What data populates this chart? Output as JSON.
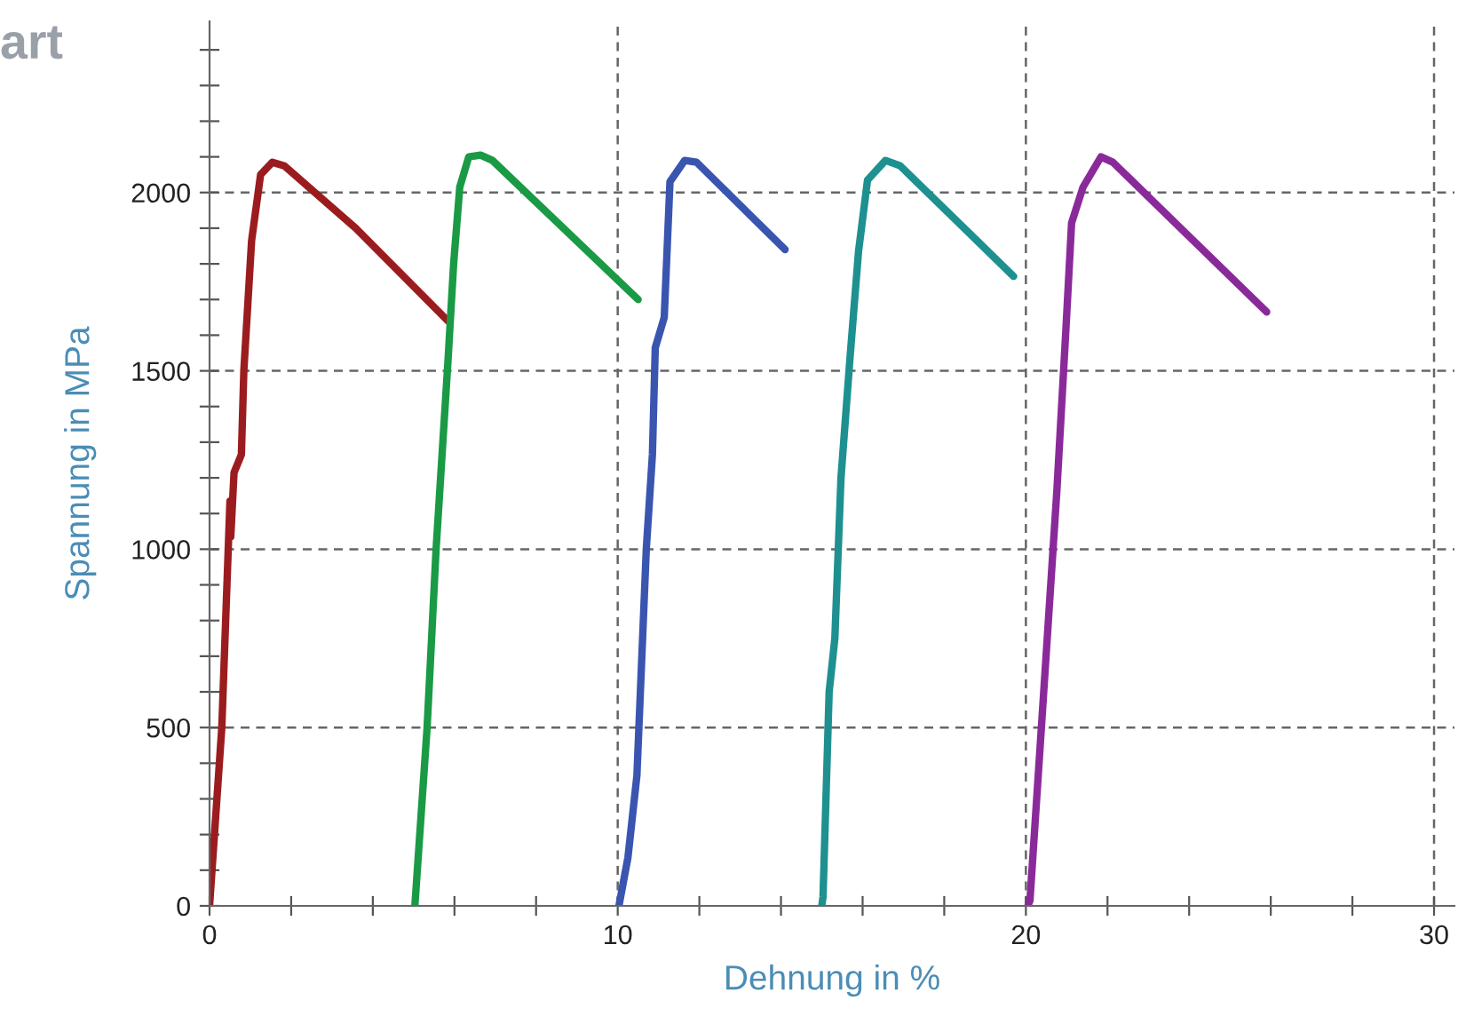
{
  "chart_data": {
    "type": "line",
    "title": "art",
    "xlabel": "Dehnung in %",
    "ylabel": "Spannung in MPa",
    "xlim": [
      0,
      30.5
    ],
    "ylim": [
      0,
      2480
    ],
    "xticks": [
      0,
      {
        "value": 2,
        "label": null
      },
      {
        "value": 4,
        "label": null
      },
      {
        "value": 6,
        "label": null
      },
      {
        "value": 8,
        "label": null
      },
      10,
      {
        "value": 12,
        "label": null
      },
      {
        "value": 14,
        "label": null
      },
      {
        "value": 16,
        "label": null
      },
      {
        "value": 18,
        "label": null
      },
      20,
      {
        "value": 22,
        "label": null
      },
      {
        "value": 24,
        "label": null
      },
      {
        "value": 26,
        "label": null
      },
      {
        "value": 28,
        "label": null
      },
      30
    ],
    "yticks": [
      0,
      {
        "value": 100,
        "label": null
      },
      {
        "value": 200,
        "label": null
      },
      {
        "value": 300,
        "label": null
      },
      {
        "value": 400,
        "label": null
      },
      500,
      {
        "value": 600,
        "label": null
      },
      {
        "value": 700,
        "label": null
      },
      {
        "value": 800,
        "label": null
      },
      {
        "value": 900,
        "label": null
      },
      1000,
      {
        "value": 1100,
        "label": null
      },
      {
        "value": 1200,
        "label": null
      },
      {
        "value": 1300,
        "label": null
      },
      {
        "value": 1400,
        "label": null
      },
      1500,
      {
        "value": 1600,
        "label": null
      },
      {
        "value": 1700,
        "label": null
      },
      {
        "value": 1800,
        "label": null
      },
      {
        "value": 1900,
        "label": null
      },
      2000,
      {
        "value": 2100,
        "label": null
      },
      {
        "value": 2200,
        "label": null
      },
      {
        "value": 2300,
        "label": null
      },
      {
        "value": 2400,
        "label": null
      }
    ],
    "grid": true,
    "marker": "none",
    "line_style": "solid",
    "series": [
      {
        "color": "#9b1c1f",
        "x": [
          0,
          0.3,
          0.5,
          0.52,
          0.6,
          0.78,
          0.84,
          1.03,
          1.25,
          1.54,
          1.83,
          3.58,
          5.84
        ],
        "values": [
          0,
          500,
          1135,
          1035,
          1215,
          1265,
          1500,
          1865,
          2050,
          2085,
          2075,
          1900,
          1640
        ]
      },
      {
        "color": "#1a9a45",
        "x": [
          5.03,
          5.33,
          5.55,
          5.84,
          5.98,
          6.13,
          6.35,
          6.64,
          6.93,
          10.5
        ],
        "values": [
          0,
          500,
          1000,
          1525,
          1800,
          2015,
          2100,
          2105,
          2090,
          1700
        ]
      },
      {
        "color": "#3a55b0",
        "x": [
          10.03,
          10.25,
          10.47,
          10.7,
          10.85,
          10.92,
          11.14,
          11.28,
          11.64,
          11.93,
          14.1
        ],
        "values": [
          0,
          135,
          365,
          1000,
          1265,
          1565,
          1650,
          2030,
          2090,
          2085,
          1840
        ]
      },
      {
        "color": "#1e9090",
        "x": [
          15.0,
          15.03,
          15.18,
          15.32,
          15.47,
          15.69,
          15.9,
          16.12,
          16.56,
          16.92,
          19.7
        ],
        "values": [
          0,
          25,
          600,
          750,
          1200,
          1535,
          1835,
          2035,
          2090,
          2075,
          1765
        ]
      },
      {
        "color": "#8a2a9a",
        "x": [
          20.05,
          20.1,
          20.4,
          20.76,
          20.98,
          21.12,
          21.4,
          21.84,
          22.13,
          25.9
        ],
        "values": [
          0,
          15,
          535,
          1165,
          1615,
          1915,
          2015,
          2100,
          2085,
          1665
        ]
      }
    ]
  }
}
